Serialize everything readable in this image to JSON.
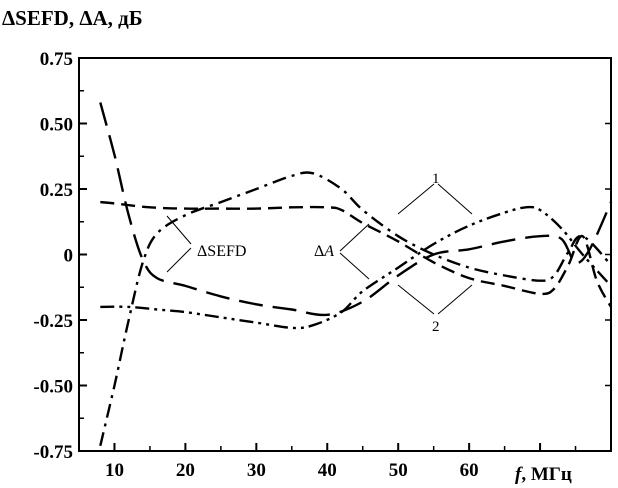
{
  "chart_data": {
    "type": "line",
    "ylabel": "ΔSEFD, ΔA, дБ",
    "xlabel_italic": "f",
    "xlabel_unit": ", МГц",
    "xlim": [
      5,
      80
    ],
    "ylim": [
      -0.75,
      0.75
    ],
    "xticks": [
      10,
      20,
      30,
      40,
      50,
      60
    ],
    "xtick_labels": [
      "10",
      "20",
      "30",
      "40",
      "50",
      "60"
    ],
    "yticks": [
      0.75,
      0.5,
      0.25,
      0,
      -0.25,
      -0.5,
      -0.75
    ],
    "ytick_labels": [
      "0.75",
      "0.50",
      "0.25",
      "0",
      "-0.25",
      "-0.50",
      "-0.75"
    ],
    "grid": false,
    "annotations": {
      "sefd_label": "ΔSEFD",
      "a_label": "ΔA",
      "curve1_label": "1",
      "curve2_label": "2"
    },
    "series": [
      {
        "style": "long-dash",
        "x": [
          8,
          10,
          12,
          14,
          16,
          20,
          25,
          30,
          35,
          40,
          45,
          50,
          55,
          60,
          65,
          70,
          73,
          75,
          77,
          80
        ],
        "y": [
          0.58,
          0.38,
          0.15,
          -0.02,
          -0.09,
          -0.12,
          -0.16,
          -0.19,
          -0.21,
          -0.23,
          -0.18,
          -0.08,
          0.0,
          0.02,
          0.05,
          0.07,
          0.06,
          -0.03,
          0.02,
          0.2
        ]
      },
      {
        "style": "dash",
        "x": [
          8,
          10,
          15,
          20,
          25,
          30,
          35,
          40,
          42,
          45,
          50,
          55,
          60,
          65,
          70,
          72,
          74,
          76,
          78,
          80
        ],
        "y": [
          0.2,
          0.195,
          0.18,
          0.175,
          0.175,
          0.175,
          0.18,
          0.18,
          0.17,
          0.12,
          0.05,
          -0.03,
          -0.09,
          -0.12,
          -0.15,
          -0.13,
          -0.04,
          0.07,
          -0.1,
          -0.2
        ]
      },
      {
        "style": "dash-dot",
        "x": [
          8,
          10,
          12,
          14,
          16,
          20,
          25,
          30,
          35,
          38,
          42,
          45,
          50,
          55,
          60,
          65,
          70,
          72,
          74,
          76,
          80
        ],
        "y": [
          -0.73,
          -0.5,
          -0.25,
          -0.03,
          0.08,
          0.15,
          0.2,
          0.25,
          0.3,
          0.31,
          0.25,
          0.17,
          0.07,
          0.0,
          -0.05,
          -0.08,
          -0.1,
          -0.08,
          0.01,
          0.07,
          -0.04
        ]
      },
      {
        "style": "dash-dot-dot",
        "x": [
          8,
          12,
          16,
          20,
          25,
          30,
          35,
          38,
          42,
          45,
          50,
          55,
          60,
          65,
          68,
          70,
          73,
          76,
          80
        ],
        "y": [
          -0.2,
          -0.2,
          -0.21,
          -0.22,
          -0.24,
          -0.26,
          -0.28,
          -0.27,
          -0.22,
          -0.14,
          -0.05,
          0.04,
          0.11,
          0.16,
          0.18,
          0.17,
          0.1,
          0.0,
          -0.12
        ]
      }
    ]
  }
}
